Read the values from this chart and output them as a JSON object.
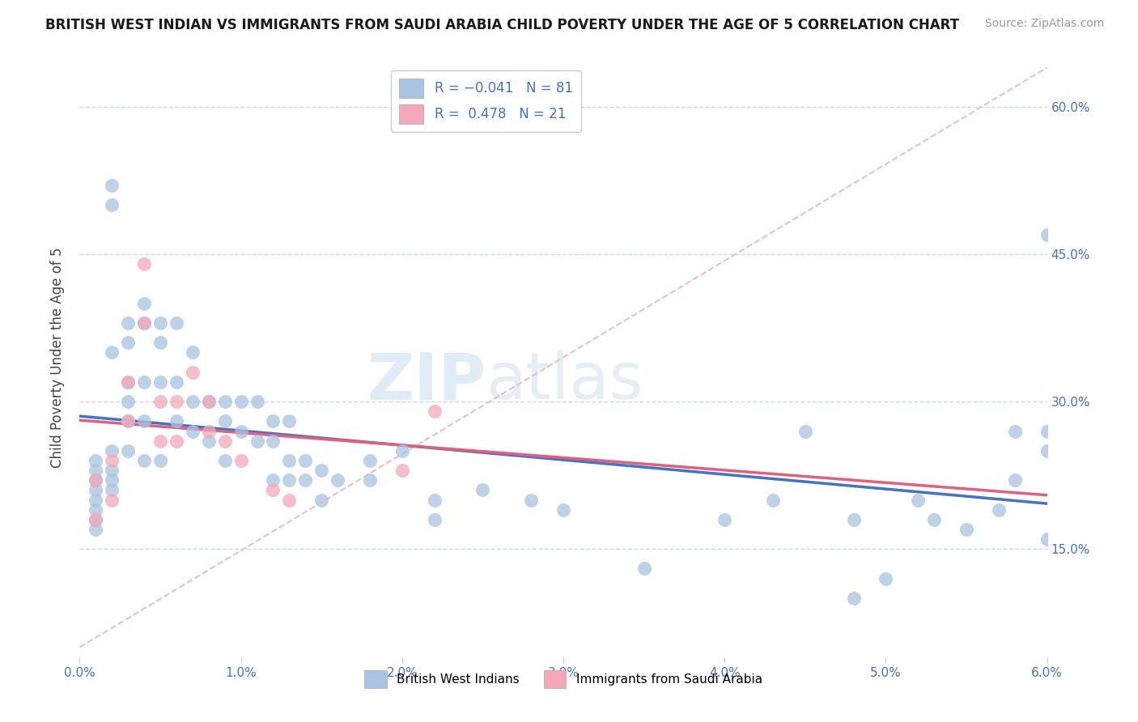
{
  "title": "BRITISH WEST INDIAN VS IMMIGRANTS FROM SAUDI ARABIA CHILD POVERTY UNDER THE AGE OF 5 CORRELATION CHART",
  "source": "Source: ZipAtlas.com",
  "ylabel": "Child Poverty Under the Age of 5",
  "y_ticks": [
    "15.0%",
    "30.0%",
    "45.0%",
    "60.0%"
  ],
  "y_tick_vals": [
    0.15,
    0.3,
    0.45,
    0.6
  ],
  "xmin": 0.0,
  "xmax": 0.06,
  "ymin": 0.04,
  "ymax": 0.65,
  "r_blue": -0.041,
  "n_blue": 81,
  "r_pink": 0.478,
  "n_pink": 21,
  "blue_color": "#a8c4e0",
  "pink_color": "#f4a7b9",
  "blue_line_color": "#4472c4",
  "pink_line_color": "#e06080",
  "dashed_line_color": "#e8c0c8",
  "watermark_zip": "ZIP",
  "watermark_atlas": "atlas",
  "legend_label_blue": "British West Indians",
  "legend_label_pink": "Immigrants from Saudi Arabia",
  "blue_x": [
    0.001,
    0.001,
    0.001,
    0.001,
    0.001,
    0.001,
    0.001,
    0.001,
    0.002,
    0.002,
    0.002,
    0.002,
    0.002,
    0.002,
    0.002,
    0.003,
    0.003,
    0.003,
    0.003,
    0.003,
    0.003,
    0.004,
    0.004,
    0.004,
    0.004,
    0.004,
    0.005,
    0.005,
    0.005,
    0.005,
    0.006,
    0.006,
    0.006,
    0.007,
    0.007,
    0.007,
    0.008,
    0.008,
    0.009,
    0.009,
    0.009,
    0.01,
    0.01,
    0.011,
    0.011,
    0.012,
    0.012,
    0.012,
    0.013,
    0.013,
    0.013,
    0.014,
    0.014,
    0.015,
    0.015,
    0.016,
    0.018,
    0.018,
    0.02,
    0.022,
    0.022,
    0.025,
    0.028,
    0.03,
    0.035,
    0.04,
    0.043,
    0.05,
    0.053,
    0.055,
    0.057,
    0.058,
    0.06,
    0.06,
    0.06,
    0.045,
    0.048,
    0.06,
    0.058,
    0.052,
    0.048
  ],
  "blue_y": [
    0.24,
    0.22,
    0.23,
    0.21,
    0.2,
    0.19,
    0.18,
    0.17,
    0.52,
    0.5,
    0.35,
    0.25,
    0.23,
    0.22,
    0.21,
    0.38,
    0.36,
    0.32,
    0.3,
    0.28,
    0.25,
    0.4,
    0.38,
    0.32,
    0.28,
    0.24,
    0.38,
    0.36,
    0.32,
    0.24,
    0.38,
    0.32,
    0.28,
    0.35,
    0.3,
    0.27,
    0.3,
    0.26,
    0.3,
    0.28,
    0.24,
    0.3,
    0.27,
    0.3,
    0.26,
    0.28,
    0.26,
    0.22,
    0.28,
    0.24,
    0.22,
    0.24,
    0.22,
    0.23,
    0.2,
    0.22,
    0.24,
    0.22,
    0.25,
    0.2,
    0.18,
    0.21,
    0.2,
    0.19,
    0.13,
    0.18,
    0.2,
    0.12,
    0.18,
    0.17,
    0.19,
    0.22,
    0.27,
    0.25,
    0.47,
    0.27,
    0.18,
    0.16,
    0.27,
    0.2,
    0.1
  ],
  "pink_x": [
    0.001,
    0.001,
    0.002,
    0.002,
    0.003,
    0.003,
    0.004,
    0.004,
    0.005,
    0.005,
    0.006,
    0.006,
    0.007,
    0.008,
    0.008,
    0.009,
    0.01,
    0.012,
    0.013,
    0.02,
    0.022
  ],
  "pink_y": [
    0.22,
    0.18,
    0.24,
    0.2,
    0.32,
    0.28,
    0.44,
    0.38,
    0.3,
    0.26,
    0.3,
    0.26,
    0.33,
    0.3,
    0.27,
    0.26,
    0.24,
    0.21,
    0.2,
    0.23,
    0.29
  ]
}
